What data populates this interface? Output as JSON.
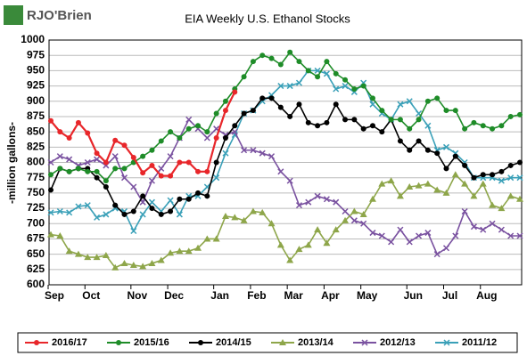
{
  "logo": "RJO'Brien",
  "chart_data": {
    "type": "line",
    "title": "EIA Weekly U.S. Ethanol Stocks",
    "y_label": "-million gallons-",
    "categories": [
      "Sep",
      null,
      null,
      null,
      "Oct",
      null,
      null,
      null,
      null,
      "Nov",
      null,
      null,
      null,
      "Dec",
      null,
      null,
      null,
      null,
      "Jan",
      null,
      null,
      null,
      "Feb",
      null,
      null,
      null,
      "Mar",
      null,
      null,
      null,
      "Apr",
      null,
      null,
      null,
      "May",
      null,
      null,
      null,
      null,
      "Jun",
      null,
      null,
      null,
      "Jul",
      null,
      null,
      null,
      "Aug",
      null,
      null,
      null,
      null
    ],
    "ylim": [
      600,
      1000
    ],
    "yticks": [
      600,
      625,
      650,
      675,
      700,
      725,
      750,
      775,
      800,
      825,
      850,
      875,
      900,
      925,
      950,
      975,
      1000
    ],
    "grid": true,
    "legend": "bottom",
    "series": [
      {
        "name": "2016/17",
        "color": "#e8262a",
        "marker": "circle",
        "values": [
          868,
          850,
          840,
          865,
          848,
          815,
          800,
          836,
          828,
          808,
          783,
          795,
          778,
          778,
          800,
          800,
          785,
          785,
          840,
          885,
          915,
          null,
          null,
          null,
          null,
          null,
          null,
          null,
          null,
          null,
          null,
          null,
          null,
          null,
          null,
          null,
          null,
          null,
          null,
          null,
          null,
          null,
          null,
          null,
          null,
          null,
          null,
          null,
          null,
          null,
          null,
          null
        ]
      },
      {
        "name": "2015/16",
        "color": "#1e8c28",
        "marker": "circle",
        "values": [
          780,
          790,
          785,
          790,
          785,
          785,
          770,
          790,
          790,
          800,
          810,
          820,
          835,
          850,
          840,
          855,
          860,
          850,
          880,
          900,
          920,
          940,
          965,
          975,
          970,
          960,
          980,
          965,
          950,
          940,
          965,
          945,
          935,
          920,
          925,
          905,
          885,
          870,
          870,
          855,
          870,
          900,
          905,
          885,
          885,
          855,
          865,
          860,
          855,
          860,
          875,
          878
        ]
      },
      {
        "name": "2014/15",
        "color": "#000000",
        "marker": "circle",
        "values": [
          755,
          790,
          785,
          790,
          790,
          775,
          760,
          730,
          715,
          720,
          745,
          725,
          715,
          720,
          740,
          740,
          750,
          745,
          800,
          840,
          860,
          880,
          885,
          905,
          905,
          890,
          875,
          895,
          865,
          860,
          865,
          895,
          870,
          870,
          855,
          860,
          850,
          870,
          835,
          820,
          835,
          820,
          815,
          790,
          810,
          795,
          775,
          780,
          780,
          785,
          795,
          800
        ]
      },
      {
        "name": "2013/14",
        "color": "#8ea64a",
        "marker": "triangle",
        "values": [
          682,
          680,
          655,
          650,
          645,
          645,
          648,
          628,
          635,
          632,
          630,
          635,
          640,
          652,
          655,
          655,
          660,
          675,
          675,
          712,
          710,
          705,
          720,
          718,
          700,
          665,
          640,
          658,
          665,
          690,
          668,
          690,
          705,
          720,
          715,
          740,
          765,
          770,
          745,
          760,
          762,
          765,
          755,
          750,
          780,
          765,
          745,
          765,
          730,
          725,
          745,
          740
        ]
      },
      {
        "name": "2012/13",
        "color": "#7a52a0",
        "marker": "x",
        "values": [
          800,
          810,
          805,
          795,
          800,
          805,
          795,
          810,
          775,
          760,
          735,
          770,
          790,
          810,
          840,
          870,
          855,
          840,
          855,
          845,
          850,
          820,
          820,
          815,
          810,
          785,
          770,
          730,
          735,
          745,
          740,
          735,
          720,
          705,
          700,
          685,
          680,
          670,
          690,
          670,
          680,
          685,
          650,
          660,
          680,
          720,
          695,
          690,
          700,
          690,
          680,
          680
        ]
      },
      {
        "name": "2011/12",
        "color": "#3aa0b8",
        "marker": "x",
        "values": [
          718,
          720,
          718,
          728,
          730,
          710,
          715,
          725,
          720,
          688,
          715,
          735,
          720,
          738,
          715,
          745,
          745,
          760,
          775,
          815,
          845,
          880,
          885,
          900,
          910,
          925,
          925,
          930,
          950,
          950,
          945,
          920,
          925,
          915,
          930,
          895,
          880,
          870,
          895,
          900,
          880,
          860,
          820,
          825,
          815,
          800,
          775,
          775,
          775,
          770,
          775,
          775
        ]
      }
    ]
  }
}
